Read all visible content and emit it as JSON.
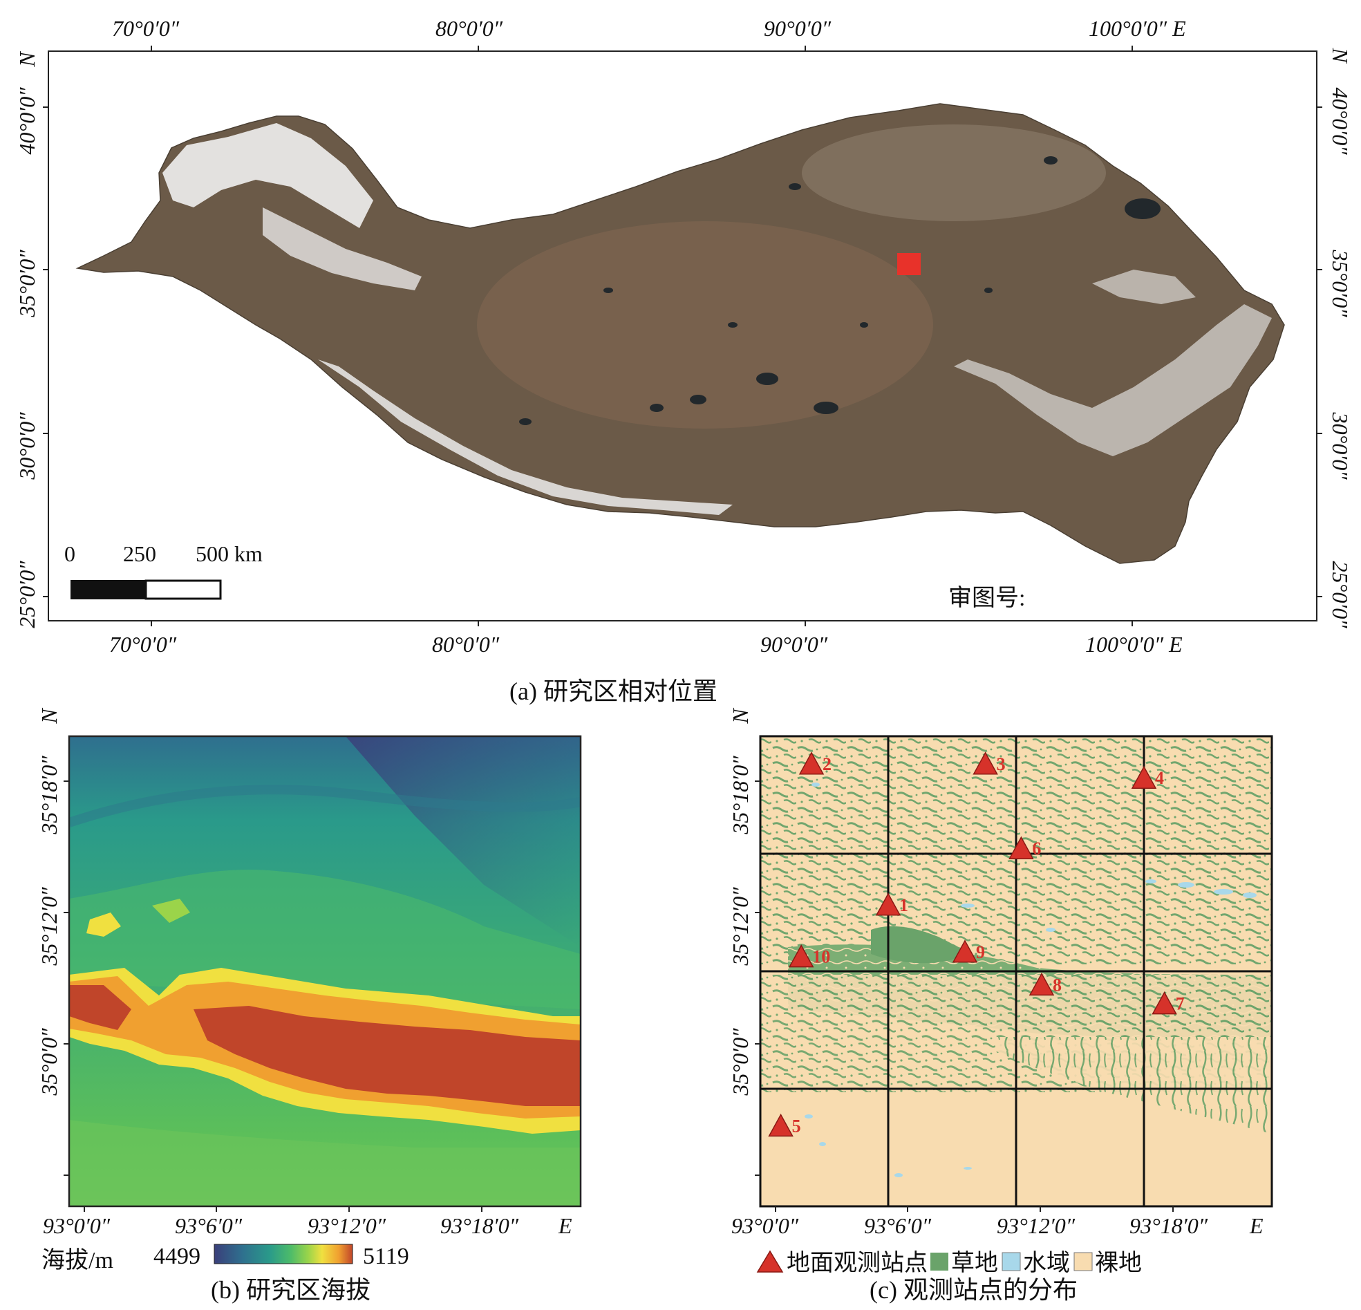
{
  "panel_a": {
    "caption": "(a) 研究区相对位置",
    "top_lon_labels": [
      "70°0′0″",
      "80°0′0″",
      "90°0′0″",
      "100°0′0″ E"
    ],
    "bottom_lon_labels": [
      "70°0′0″",
      "80°0′0″",
      "90°0′0″",
      "100°0′0″ E"
    ],
    "left_lat_labels": [
      "N",
      "40°0′0″",
      "35°0′0″",
      "30°0′0″",
      "25°0′0″"
    ],
    "right_lat_labels": [
      "N",
      "40°0′0″",
      "35°0′0″",
      "30°0′0″",
      "25°0′0″"
    ],
    "scale_labels": [
      "0",
      "250",
      "500 km"
    ],
    "review_no": "审图号:",
    "colors": {
      "plateau": "#6b5a48",
      "snow": "#f4f4f4",
      "lake": "#22282c",
      "marker": "#e8322a"
    }
  },
  "panel_b": {
    "caption": "(b) 研究区海拔",
    "lat_labels": [
      "N",
      "35°18′0″",
      "35°12′0″",
      "35°0′0″"
    ],
    "lon_labels": [
      "93°0′0″",
      "93°6′0″",
      "93°12′0″",
      "93°18′0″",
      "E"
    ],
    "legend_title": "海拔/m",
    "legend_min": "4499",
    "legend_max": "5119",
    "colormap": [
      "#3a3f7a",
      "#2f6f8e",
      "#2a9a8a",
      "#4cbb6a",
      "#9bd44a",
      "#f0e040",
      "#f0a030",
      "#c0452a"
    ]
  },
  "panel_c": {
    "caption": "(c) 观测站点的分布",
    "lat_labels": [
      "N",
      "35°18′0″",
      "35°12′0″",
      "35°0′0″"
    ],
    "lon_labels": [
      "93°0′0″",
      "93°6′0″",
      "93°12′0″",
      "93°18′0″",
      "E"
    ],
    "stations": [
      {
        "id": "1",
        "col": 0.25,
        "row": 0.36
      },
      {
        "id": "2",
        "col": 0.1,
        "row": 0.06
      },
      {
        "id": "3",
        "col": 0.44,
        "row": 0.06
      },
      {
        "id": "4",
        "col": 0.75,
        "row": 0.09
      },
      {
        "id": "5",
        "col": 0.04,
        "row": 0.83
      },
      {
        "id": "6",
        "col": 0.51,
        "row": 0.24
      },
      {
        "id": "7",
        "col": 0.79,
        "row": 0.57
      },
      {
        "id": "8",
        "col": 0.55,
        "row": 0.53
      },
      {
        "id": "9",
        "col": 0.4,
        "row": 0.46
      },
      {
        "id": "10",
        "col": 0.08,
        "row": 0.47
      }
    ],
    "legend": [
      {
        "label": "地面观测站点",
        "color": "#d6322a",
        "shape": "triangle"
      },
      {
        "label": "草地",
        "color": "#6aa36a",
        "shape": "square"
      },
      {
        "label": "水域",
        "color": "#a8d8ea",
        "shape": "square"
      },
      {
        "label": "裸地",
        "color": "#f8dcb0",
        "shape": "square"
      }
    ]
  }
}
